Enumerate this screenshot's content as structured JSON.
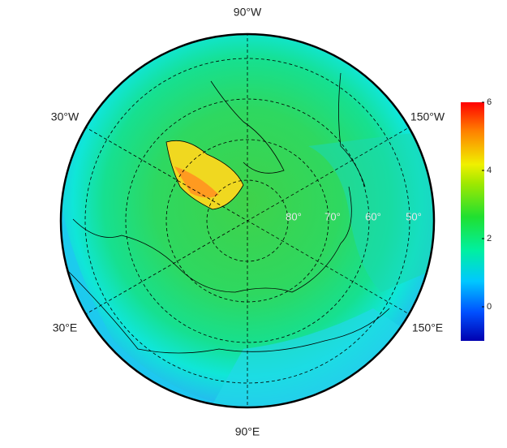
{
  "map": {
    "longitude_labels": [
      "90°W",
      "30°W",
      "150°W",
      "30°E",
      "150°E",
      "90°E"
    ],
    "latitude_labels": [
      "80°",
      "70°",
      "60°",
      "50°"
    ],
    "colorbar": {
      "lim": [
        -1,
        6
      ],
      "ticks": [
        0,
        2,
        4,
        6
      ]
    }
  }
}
